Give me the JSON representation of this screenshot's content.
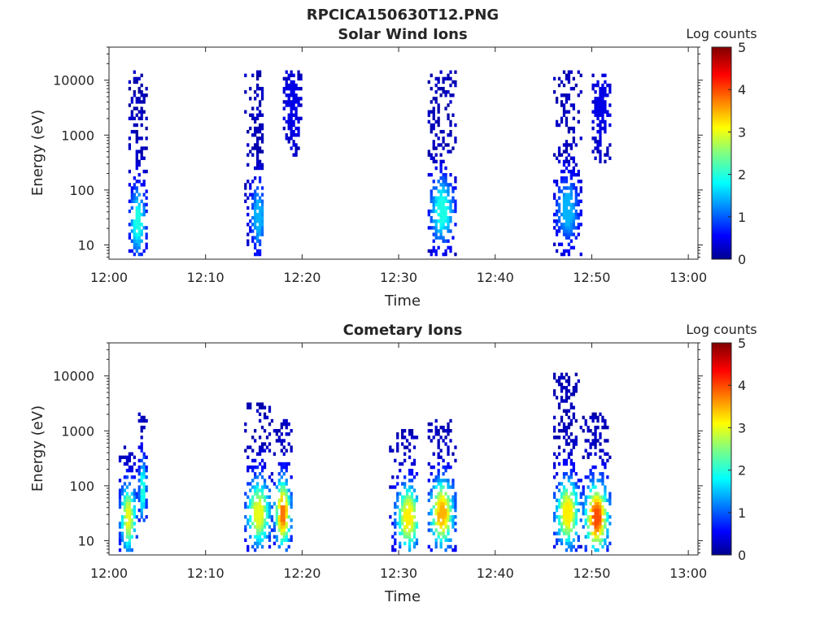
{
  "figure": {
    "title": "RPCICA150630T12.PNG"
  },
  "chart_data": [
    {
      "type": "heatmap",
      "title": "Solar Wind Ions",
      "xlabel": "Time",
      "ylabel": "Energy (eV)",
      "yscale": "log",
      "ylim": [
        5.5,
        40000
      ],
      "xlim": [
        "12:00",
        "13:01"
      ],
      "xticks": [
        "12:00",
        "12:10",
        "12:20",
        "12:30",
        "12:40",
        "12:50",
        "13:00"
      ],
      "yticks": [
        "10",
        "100",
        "1000",
        "10000"
      ],
      "colorbar": {
        "label": "Log counts",
        "range": [
          0,
          5
        ],
        "ticks": [
          "0",
          "1",
          "2",
          "3",
          "4",
          "5"
        ],
        "colormap": "jet"
      },
      "grid": false,
      "bursts": [
        {
          "center": "12:03",
          "time_range": [
            "12:02",
            "12:04"
          ],
          "energy_range": [
            6,
            14000
          ],
          "peak_log_counts": 2.0,
          "peak_energy": 25
        },
        {
          "center": "12:15.5",
          "time_range": [
            "12:14",
            "12:16"
          ],
          "energy_range": [
            6,
            14000
          ],
          "peak_log_counts": 1.5,
          "peak_energy": 30
        },
        {
          "center": "12:19",
          "time_range": [
            "12:18",
            "12:20"
          ],
          "energy_range": [
            400,
            15000
          ],
          "peak_log_counts": 0.5,
          "peak_energy": 3000
        },
        {
          "center": "12:34.5",
          "time_range": [
            "12:33",
            "12:36"
          ],
          "energy_range": [
            6,
            14000
          ],
          "peak_log_counts": 2.0,
          "peak_energy": 40
        },
        {
          "center": "12:47.5",
          "time_range": [
            "12:46",
            "12:49"
          ],
          "energy_range": [
            6,
            14000
          ],
          "peak_log_counts": 1.5,
          "peak_energy": 40
        },
        {
          "center": "12:51",
          "time_range": [
            "12:50",
            "12:52"
          ],
          "energy_range": [
            300,
            12000
          ],
          "peak_log_counts": 0.5,
          "peak_energy": 3000
        }
      ]
    },
    {
      "type": "heatmap",
      "title": "Cometary Ions",
      "xlabel": "Time",
      "ylabel": "Energy (eV)",
      "yscale": "log",
      "ylim": [
        5.5,
        40000
      ],
      "xlim": [
        "12:00",
        "13:01"
      ],
      "xticks": [
        "12:00",
        "12:10",
        "12:20",
        "12:30",
        "12:40",
        "12:50",
        "13:00"
      ],
      "yticks": [
        "10",
        "100",
        "1000",
        "10000"
      ],
      "colorbar": {
        "label": "Log counts",
        "range": [
          0,
          5
        ],
        "ticks": [
          "0",
          "1",
          "2",
          "3",
          "4",
          "5"
        ],
        "colormap": "jet"
      },
      "grid": false,
      "bursts": [
        {
          "center": "12:02",
          "time_range": [
            "12:01",
            "12:03"
          ],
          "energy_range": [
            6,
            500
          ],
          "peak_log_counts": 3.0,
          "peak_energy": 25
        },
        {
          "center": "12:03.5",
          "time_range": [
            "12:03",
            "12:04"
          ],
          "energy_range": [
            20,
            2000
          ],
          "peak_log_counts": 2.0,
          "peak_energy": 80
        },
        {
          "center": "12:15.5",
          "time_range": [
            "12:14",
            "12:17"
          ],
          "energy_range": [
            6,
            3000
          ],
          "peak_log_counts": 3.0,
          "peak_energy": 30
        },
        {
          "center": "12:18",
          "time_range": [
            "12:17",
            "12:19"
          ],
          "energy_range": [
            6,
            1500
          ],
          "peak_log_counts": 3.8,
          "peak_energy": 30
        },
        {
          "center": "12:31",
          "time_range": [
            "12:29",
            "12:32"
          ],
          "energy_range": [
            6,
            1000
          ],
          "peak_log_counts": 3.2,
          "peak_energy": 25
        },
        {
          "center": "12:34.5",
          "time_range": [
            "12:33",
            "12:36"
          ],
          "energy_range": [
            6,
            1500
          ],
          "peak_log_counts": 3.5,
          "peak_energy": 30
        },
        {
          "center": "12:47.5",
          "time_range": [
            "12:46",
            "12:49"
          ],
          "energy_range": [
            6,
            10000
          ],
          "peak_log_counts": 3.2,
          "peak_energy": 30
        },
        {
          "center": "12:50.5",
          "time_range": [
            "12:49",
            "12:52"
          ],
          "energy_range": [
            6,
            2000
          ],
          "peak_log_counts": 4.0,
          "peak_energy": 25
        }
      ]
    }
  ]
}
